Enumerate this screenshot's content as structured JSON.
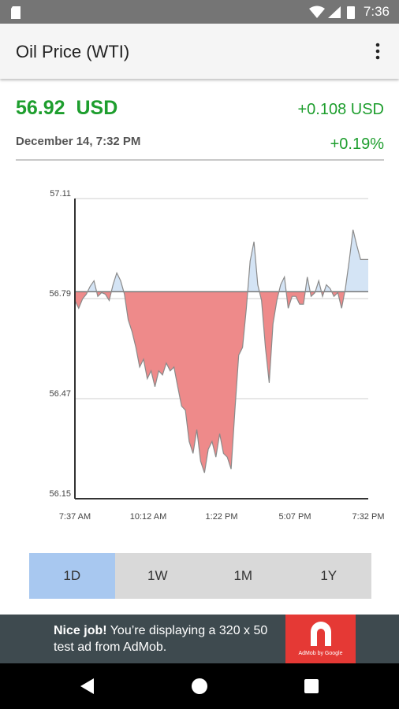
{
  "status_bar": {
    "time": "7:36"
  },
  "app_bar": {
    "title": "Oil Price (WTI)"
  },
  "quote": {
    "price": "56.92",
    "currency": "USD",
    "change": "+0.108 USD",
    "timestamp": "December 14, 7:32 PM",
    "change_percent": "+0.19%"
  },
  "chart_data": {
    "type": "area",
    "values": [
      56.784,
      56.759,
      56.789,
      56.804,
      56.829,
      56.847,
      56.797,
      56.809,
      56.804,
      56.784,
      56.834,
      56.872,
      56.847,
      56.804,
      56.722,
      56.684,
      56.634,
      56.571,
      56.596,
      56.534,
      56.559,
      56.508,
      56.559,
      56.546,
      56.584,
      56.559,
      56.571,
      56.508,
      56.446,
      56.433,
      56.333,
      56.295,
      56.371,
      56.27,
      56.233,
      56.308,
      56.333,
      56.283,
      56.358,
      56.295,
      56.283,
      56.245,
      56.433,
      56.609,
      56.634,
      56.759,
      56.91,
      56.972,
      56.834,
      56.784,
      56.634,
      56.521,
      56.709,
      56.784,
      56.834,
      56.859,
      56.759,
      56.797,
      56.797,
      56.772,
      56.772,
      56.859,
      56.797,
      56.809,
      56.847,
      56.797,
      56.834,
      56.822,
      56.797,
      56.809,
      56.759,
      56.822,
      56.91,
      57.01,
      56.96,
      56.915,
      56.915,
      56.915
    ],
    "baseline": 56.812,
    "x_labels": [
      "7:37 AM",
      "10:12 AM",
      "1:22 PM",
      "5:07 PM",
      "7:32 PM"
    ],
    "ylim": [
      56.15,
      57.11
    ],
    "yticks": [
      57.11,
      56.79,
      56.47,
      56.15
    ],
    "grid": true,
    "line_color": "#8a8a8a",
    "above_color": "#d4e4f5",
    "below_color": "#ee8a8a"
  },
  "range_buttons": {
    "options": [
      "1D",
      "1W",
      "1M",
      "1Y"
    ],
    "selected": "1D"
  },
  "ad": {
    "headline": "Nice job!",
    "text": "You’re displaying a 320 x 50 test ad from AdMob.",
    "logo_text": "AdMob by Google"
  }
}
